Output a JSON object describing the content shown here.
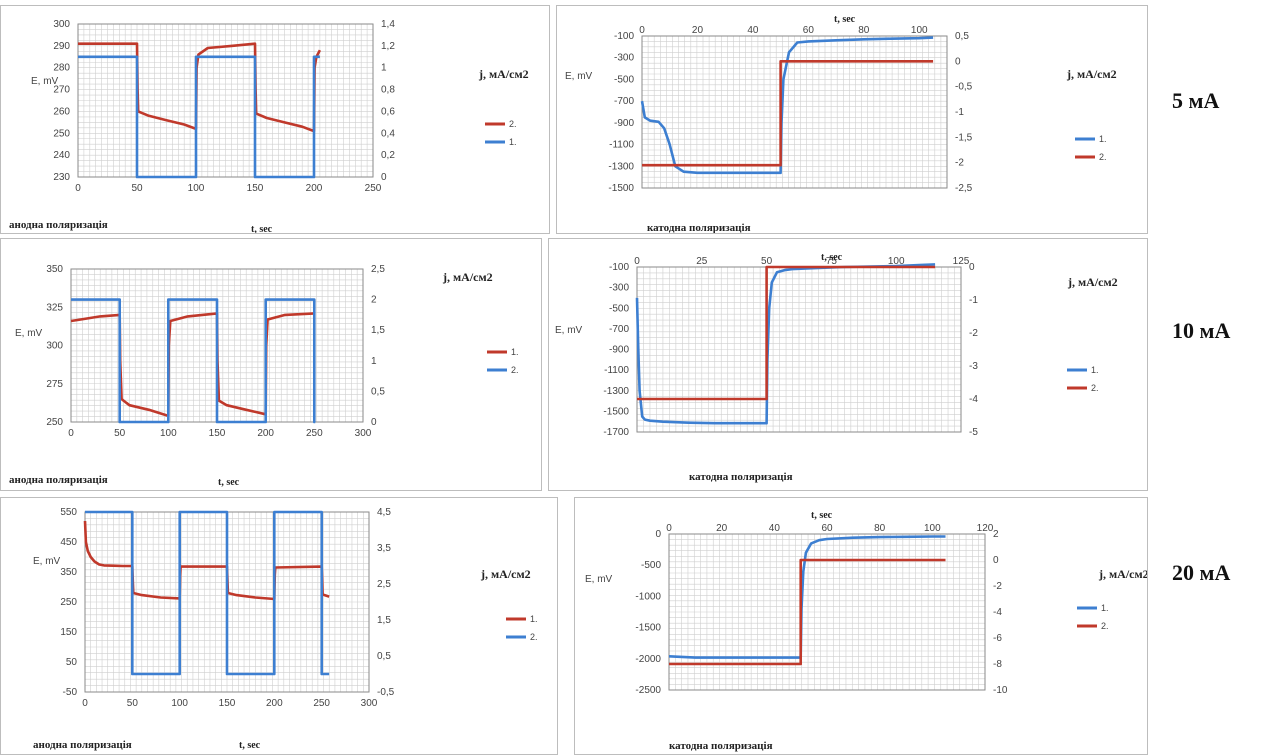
{
  "row_labels": [
    "5 мА",
    "10 мА",
    "20 мА"
  ],
  "colors": {
    "red": "#c0392b",
    "blue": "#3d7fd1",
    "grid": "#cfcfcf"
  },
  "chart_data": [
    {
      "type": "line",
      "id": "anodic-5",
      "xlabel": "t, sec",
      "ylabel": "E, mV",
      "y2label": "j, мА/см2",
      "bottom_caption": "анодна поляризація",
      "xlim": [
        0,
        250
      ],
      "ylim": [
        230,
        300
      ],
      "y2lim": [
        0,
        1.4
      ],
      "xticks": [
        "0",
        "50",
        "100",
        "150",
        "200",
        "250"
      ],
      "yticks": [
        "230",
        "240",
        "250",
        "260",
        "270",
        "280",
        "290",
        "300"
      ],
      "y2ticks": [
        "0",
        "0,2",
        "0,4",
        "0,6",
        "0,8",
        "1",
        "1,2",
        "1,4"
      ],
      "series": [
        {
          "name": "2.",
          "axis": "y",
          "color": "red",
          "x": [
            0,
            10,
            30,
            50,
            50.5,
            51,
            60,
            75,
            90,
            100,
            100.5,
            102,
            110,
            130,
            150,
            150.5,
            151,
            160,
            175,
            190,
            200,
            200.5,
            202,
            205
          ],
          "y": [
            291,
            291,
            291,
            291,
            270,
            260,
            258,
            256,
            254,
            252,
            280,
            286,
            289,
            290,
            291,
            270,
            259,
            257,
            255,
            253,
            251,
            280,
            285,
            288
          ]
        },
        {
          "name": "1.",
          "axis": "y2",
          "color": "blue",
          "x": [
            0,
            50,
            50,
            100,
            100,
            150,
            150,
            200,
            200,
            205
          ],
          "y": [
            1.1,
            1.1,
            0,
            0,
            1.1,
            1.1,
            0,
            0,
            1.1,
            1.1
          ]
        }
      ]
    },
    {
      "type": "line",
      "id": "cathodic-5",
      "xlabel": "t, sec",
      "ylabel": "E, mV",
      "y2label": "j, мА/см2",
      "bottom_caption": "катодна поляризація",
      "xlim": [
        0,
        110
      ],
      "ylim": [
        -1500,
        -100
      ],
      "y2lim": [
        -2.5,
        0.5
      ],
      "xticks": [
        "0",
        "20",
        "40",
        "60",
        "80",
        "100"
      ],
      "yticks": [
        "-100",
        "-300",
        "-500",
        "-700",
        "-900",
        "-1100",
        "-1300",
        "-1500"
      ],
      "y2ticks": [
        "0,5",
        "0",
        "-0,5",
        "-1",
        "-1,5",
        "-2",
        "-2,5"
      ],
      "series": [
        {
          "name": "1.",
          "axis": "y",
          "color": "blue",
          "x": [
            0,
            1,
            3,
            6,
            8,
            10,
            12,
            15,
            20,
            30,
            40,
            50,
            50.3,
            51,
            53,
            56,
            60,
            70,
            80,
            90,
            100,
            105
          ],
          "y": [
            -700,
            -850,
            -880,
            -890,
            -950,
            -1100,
            -1300,
            -1350,
            -1360,
            -1360,
            -1360,
            -1360,
            -900,
            -500,
            -250,
            -160,
            -150,
            -140,
            -130,
            -125,
            -120,
            -115
          ]
        },
        {
          "name": "2.",
          "axis": "y2",
          "color": "red",
          "x": [
            0,
            50,
            50,
            105
          ],
          "y": [
            -2.05,
            -2.05,
            0,
            0
          ]
        }
      ]
    },
    {
      "type": "line",
      "id": "anodic-10",
      "xlabel": "t, sec",
      "ylabel": "E, mV",
      "y2label": "j, мА/см2",
      "bottom_caption": "анодна поляризація",
      "xlim": [
        0,
        300
      ],
      "ylim": [
        250,
        350
      ],
      "y2lim": [
        0,
        2.5
      ],
      "xticks": [
        "0",
        "50",
        "100",
        "150",
        "200",
        "250",
        "300"
      ],
      "yticks": [
        "250",
        "275",
        "300",
        "325",
        "350"
      ],
      "y2ticks": [
        "0",
        "0,5",
        "1",
        "1,5",
        "2",
        "2,5"
      ],
      "series": [
        {
          "name": "1.",
          "axis": "y",
          "color": "red",
          "x": [
            0,
            10,
            30,
            50,
            50.5,
            52,
            60,
            80,
            100,
            100.5,
            102,
            120,
            150,
            150.5,
            152,
            160,
            180,
            200,
            200.5,
            202,
            220,
            250
          ],
          "y": [
            316,
            317,
            319,
            320,
            290,
            265,
            261,
            258,
            254,
            300,
            316,
            319,
            321,
            290,
            264,
            261,
            258,
            255,
            300,
            317,
            320,
            321
          ]
        },
        {
          "name": "2.",
          "axis": "y2",
          "color": "blue",
          "x": [
            0,
            50,
            50,
            100,
            100,
            150,
            150,
            200,
            200,
            250,
            250,
            251
          ],
          "y": [
            2,
            2,
            0,
            0,
            2,
            2,
            0,
            0,
            2,
            2,
            0,
            0
          ]
        }
      ]
    },
    {
      "type": "line",
      "id": "cathodic-10",
      "xlabel": "t, sec",
      "ylabel": "E, mV",
      "y2label": "j, мА/см2",
      "bottom_caption": "катодна поляризація",
      "xlim": [
        0,
        125
      ],
      "ylim": [
        -1700,
        -100
      ],
      "y2lim": [
        -5,
        0
      ],
      "xticks": [
        "0",
        "25",
        "50",
        "75",
        "100",
        "125"
      ],
      "yticks": [
        "-100",
        "-300",
        "-500",
        "-700",
        "-900",
        "-1100",
        "-1300",
        "-1500",
        "-1700"
      ],
      "y2ticks": [
        "0",
        "-1",
        "-2",
        "-3",
        "-4",
        "-5"
      ],
      "series": [
        {
          "name": "1.",
          "axis": "y",
          "color": "blue",
          "x": [
            0,
            0.5,
            1,
            2,
            3,
            5,
            10,
            20,
            30,
            40,
            50,
            50.3,
            51,
            52,
            54,
            57,
            60,
            70,
            80,
            90,
            100,
            110,
            115
          ],
          "y": [
            -400,
            -900,
            -1300,
            -1550,
            -1580,
            -1590,
            -1600,
            -1610,
            -1615,
            -1615,
            -1615,
            -1000,
            -500,
            -250,
            -150,
            -130,
            -120,
            -110,
            -100,
            -95,
            -90,
            -80,
            -75
          ]
        },
        {
          "name": "2.",
          "axis": "y2",
          "color": "red",
          "x": [
            0,
            50,
            50,
            115
          ],
          "y": [
            -4,
            -4,
            0,
            0
          ]
        }
      ]
    },
    {
      "type": "line",
      "id": "anodic-20",
      "xlabel": "t, sec",
      "ylabel": "E, mV",
      "y2label": "j, мА/см2",
      "bottom_caption": "анодна поляризація",
      "xlim": [
        0,
        300
      ],
      "ylim": [
        -50,
        550
      ],
      "y2lim": [
        -0.5,
        4.5
      ],
      "xticks": [
        "0",
        "50",
        "100",
        "150",
        "200",
        "250",
        "300"
      ],
      "yticks": [
        "-50",
        "50",
        "150",
        "250",
        "350",
        "450",
        "550"
      ],
      "y2ticks": [
        "-0,5",
        "0,5",
        "1,5",
        "2,5",
        "3,5",
        "4,5"
      ],
      "series": [
        {
          "name": "1.",
          "axis": "y",
          "color": "red",
          "x": [
            0,
            1,
            3,
            6,
            10,
            15,
            20,
            30,
            40,
            50,
            50.5,
            51,
            60,
            80,
            100,
            100.5,
            101,
            150,
            150.5,
            151,
            160,
            180,
            200,
            200.5,
            201,
            250,
            251,
            258
          ],
          "y": [
            520,
            450,
            420,
            400,
            385,
            375,
            372,
            371,
            370,
            370,
            320,
            280,
            273,
            265,
            262,
            340,
            368,
            368,
            320,
            280,
            273,
            265,
            260,
            340,
            365,
            368,
            275,
            268
          ]
        },
        {
          "name": "2.",
          "axis": "y2",
          "color": "blue",
          "x": [
            0,
            50,
            50,
            100,
            100,
            150,
            150,
            200,
            200,
            250,
            250,
            258
          ],
          "y": [
            4.5,
            4.5,
            0,
            0,
            4.5,
            4.5,
            0,
            0,
            4.5,
            4.5,
            0,
            0
          ]
        }
      ]
    },
    {
      "type": "line",
      "id": "cathodic-20",
      "xlabel": "t, sec",
      "ylabel": "E, mV",
      "y2label": "j, мА/см2",
      "bottom_caption": "катодна поляризація",
      "xlim": [
        0,
        120
      ],
      "ylim": [
        -2500,
        0
      ],
      "y2lim": [
        -10,
        2
      ],
      "xticks": [
        "0",
        "20",
        "40",
        "60",
        "80",
        "100",
        "120"
      ],
      "yticks": [
        "0",
        "-500",
        "-1000",
        "-1500",
        "-2000",
        "-2500"
      ],
      "y2ticks": [
        "2",
        "0",
        "-2",
        "-4",
        "-6",
        "-8",
        "-10"
      ],
      "series": [
        {
          "name": "1.",
          "axis": "y",
          "color": "blue",
          "x": [
            0,
            10,
            30,
            50,
            50.3,
            51,
            52,
            54,
            57,
            60,
            70,
            80,
            90,
            100,
            105
          ],
          "y": [
            -1960,
            -1980,
            -1980,
            -1980,
            -1200,
            -600,
            -300,
            -150,
            -100,
            -80,
            -60,
            -50,
            -45,
            -40,
            -40
          ]
        },
        {
          "name": "2.",
          "axis": "y2",
          "color": "red",
          "x": [
            0,
            50,
            50,
            105
          ],
          "y": [
            -8,
            -8,
            0,
            0
          ]
        }
      ]
    }
  ]
}
